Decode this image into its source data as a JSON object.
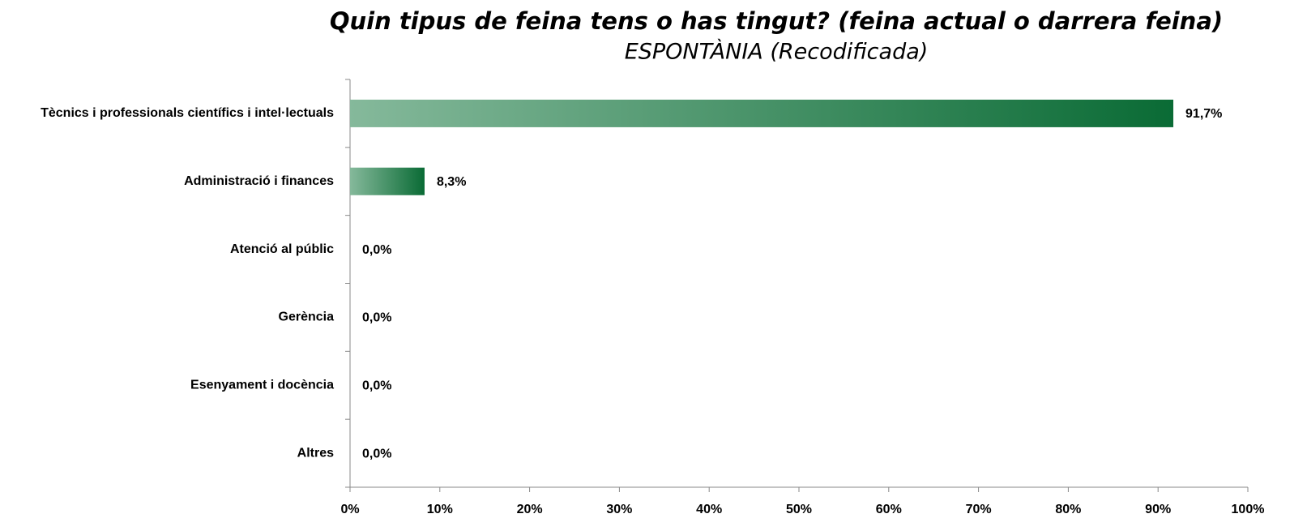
{
  "chart_data": {
    "type": "bar",
    "orientation": "horizontal",
    "title": "Quin tipus de feina tens o has tingut? (feina actual o darrera feina)",
    "subtitle": "ESPONTÀNIA (Recodificada)",
    "categories": [
      "Tècnics i professionals científics i intel·lectuals",
      "Administració i finances",
      "Atenció al públic",
      "Gerència",
      "Esenyament i docència",
      "Altres"
    ],
    "values": [
      91.7,
      8.3,
      0,
      0,
      0,
      0
    ],
    "value_labels": [
      "91,7%",
      "8,3%",
      "0,0%",
      "0,0%",
      "0,0%",
      "0,0%"
    ],
    "gradient": [
      "#85b99b",
      "#0a6b35"
    ],
    "xlim": [
      0,
      100
    ],
    "xticks": [
      {
        "value": 0,
        "label": "0%"
      },
      {
        "value": 10,
        "label": "10%"
      },
      {
        "value": 20,
        "label": "20%"
      },
      {
        "value": 30,
        "label": "30%"
      },
      {
        "value": 40,
        "label": "40%"
      },
      {
        "value": 50,
        "label": "50%"
      },
      {
        "value": 60,
        "label": "60%"
      },
      {
        "value": 70,
        "label": "70%"
      },
      {
        "value": 80,
        "label": "80%"
      },
      {
        "value": 90,
        "label": "90%"
      },
      {
        "value": 100,
        "label": "100%"
      }
    ],
    "grid": false
  }
}
